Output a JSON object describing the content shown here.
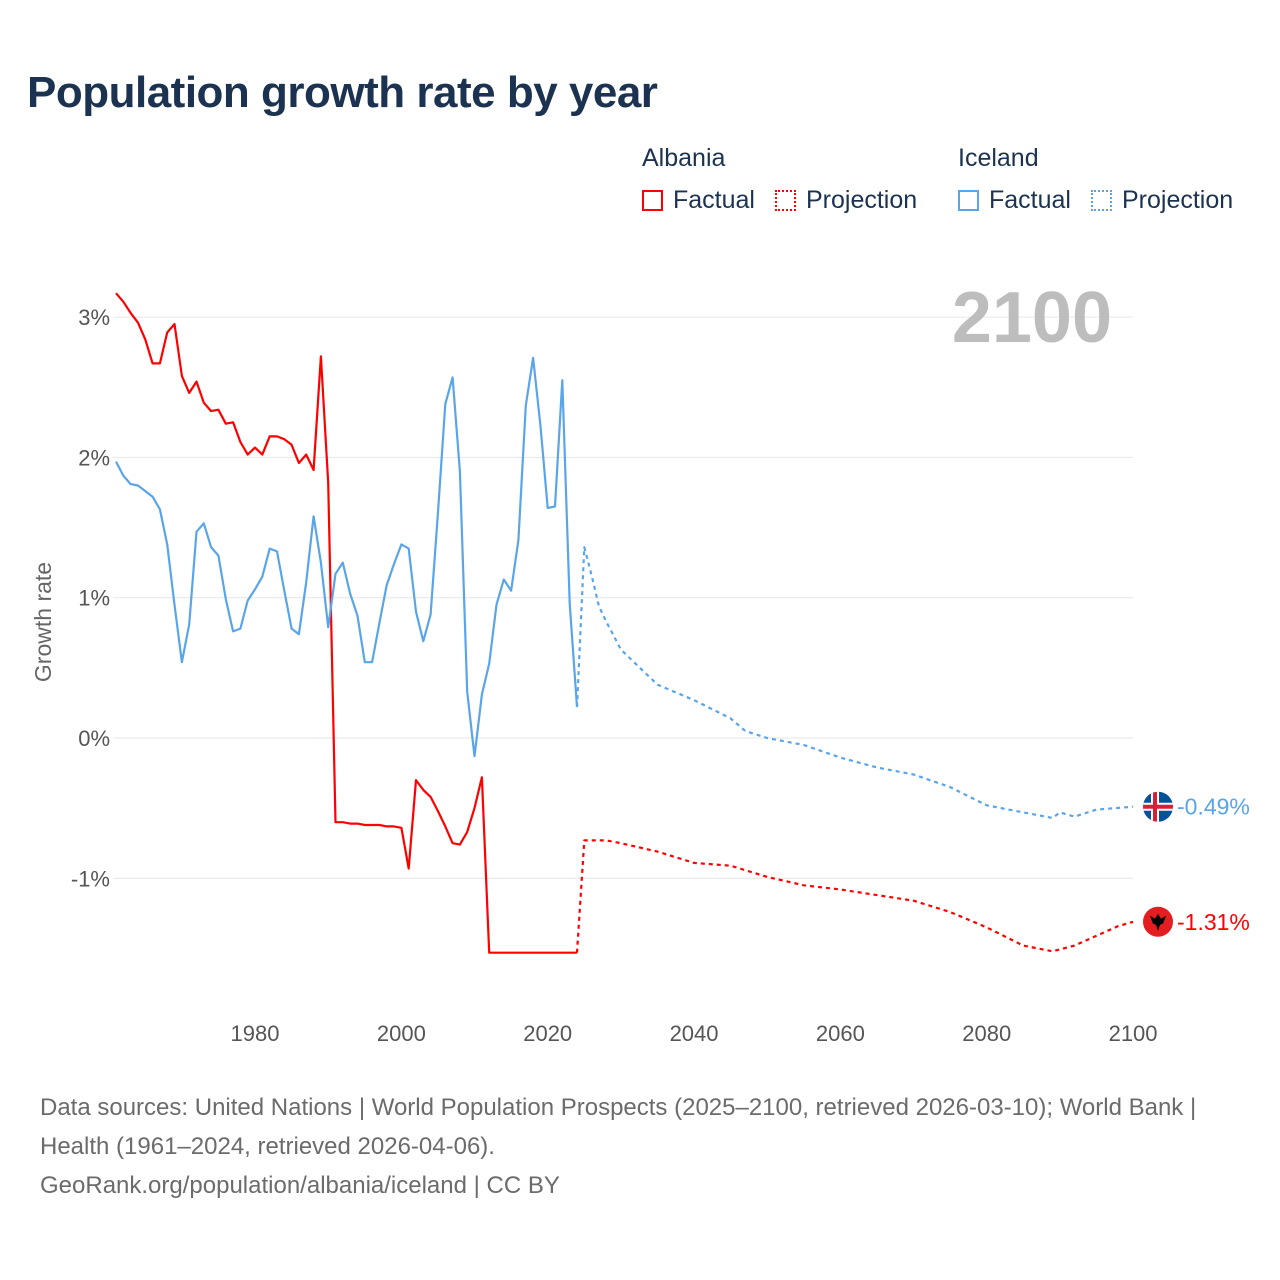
{
  "title": "Population growth rate by year",
  "legend": {
    "groups": [
      {
        "country": "Albania",
        "factual": "Factual",
        "projection": "Projection",
        "color": "#ff0000"
      },
      {
        "country": "Iceland",
        "factual": "Factual",
        "projection": "Projection",
        "color": "#5aa5ea"
      }
    ]
  },
  "year_label": "2100",
  "footer": {
    "sources": "Data sources: United Nations | World Population Prospects (2025–2100, retrieved 2026-03-10); World Bank | Health (1961–2024, retrieved 2026-04-06).",
    "credit": "GeoRank.org/population/albania/iceland | CC BY"
  },
  "chart_data": {
    "type": "line",
    "title": "Population growth rate by year",
    "xlabel": "",
    "ylabel": "Growth rate",
    "xlim": [
      1961,
      2100
    ],
    "ylim": [
      -1.9,
      3.2
    ],
    "grid": true,
    "legend_position": "top-right",
    "x_ticks": [
      1980,
      2000,
      2020,
      2040,
      2060,
      2080,
      2100
    ],
    "x_tick_labels": [
      "1980",
      "2000",
      "2020",
      "2040",
      "2060",
      "2080",
      "2100"
    ],
    "y_ticks": [
      -1,
      0,
      1,
      2,
      3
    ],
    "y_tick_labels": [
      "-1%",
      "0%",
      "1%",
      "2%",
      "3%"
    ],
    "series": [
      {
        "name": "Albania Factual",
        "country": "Albania",
        "kind": "factual",
        "color": "#ff0000",
        "start_year": 1961,
        "values": [
          3.17,
          3.11,
          3.03,
          2.96,
          2.84,
          2.67,
          2.67,
          2.89,
          2.95,
          2.58,
          2.46,
          2.54,
          2.39,
          2.33,
          2.34,
          2.24,
          2.25,
          2.11,
          2.02,
          2.07,
          2.02,
          2.15,
          2.15,
          2.13,
          2.09,
          1.96,
          2.02,
          1.91,
          2.72,
          1.82,
          -0.6,
          -0.6,
          -0.61,
          -0.61,
          -0.62,
          -0.62,
          -0.62,
          -0.63,
          -0.63,
          -0.64,
          -0.93,
          -0.3,
          -0.37,
          -0.42,
          -0.52,
          -0.63,
          -0.75,
          -0.76,
          -0.67,
          -0.5,
          -0.28,
          -1.53,
          -1.53,
          -1.53,
          -1.53,
          -1.53,
          -1.53,
          -1.53,
          -1.53,
          -1.53,
          -1.53,
          -1.53,
          -1.53,
          -1.53
        ]
      },
      {
        "name": "Albania Projection",
        "country": "Albania",
        "kind": "projection",
        "color": "#ff0000",
        "x": [
          2024,
          2025,
          2028,
          2030,
          2035,
          2040,
          2045,
          2050,
          2055,
          2060,
          2065,
          2070,
          2075,
          2080,
          2085,
          2089,
          2092,
          2095,
          2098,
          2100
        ],
        "values": [
          -1.53,
          -0.73,
          -0.73,
          -0.75,
          -0.81,
          -0.89,
          -0.91,
          -0.99,
          -1.05,
          -1.08,
          -1.12,
          -1.16,
          -1.24,
          -1.35,
          -1.48,
          -1.52,
          -1.48,
          -1.41,
          -1.34,
          -1.31
        ]
      },
      {
        "name": "Iceland Factual",
        "country": "Iceland",
        "kind": "factual",
        "color": "#5aa5ea",
        "start_year": 1961,
        "values": [
          1.97,
          1.87,
          1.81,
          1.8,
          1.76,
          1.72,
          1.63,
          1.38,
          0.95,
          0.54,
          0.81,
          1.47,
          1.53,
          1.36,
          1.3,
          0.99,
          0.76,
          0.78,
          0.98,
          1.06,
          1.15,
          1.35,
          1.33,
          1.05,
          0.78,
          0.74,
          1.11,
          1.58,
          1.25,
          0.79,
          1.17,
          1.25,
          1.03,
          0.87,
          0.54,
          0.54,
          0.82,
          1.09,
          1.24,
          1.38,
          1.35,
          0.9,
          0.69,
          0.88,
          1.6,
          2.38,
          2.57,
          1.9,
          0.33,
          -0.13,
          0.31,
          0.53,
          0.95,
          1.13,
          1.05,
          1.41,
          2.37,
          2.71,
          2.23,
          1.64,
          1.65,
          2.55,
          0.96,
          0.22
        ]
      },
      {
        "name": "Iceland Projection",
        "country": "Iceland",
        "kind": "projection",
        "color": "#5aa5ea",
        "x": [
          2024,
          2025,
          2026,
          2027,
          2028,
          2029,
          2030,
          2032,
          2035,
          2040,
          2045,
          2047,
          2050,
          2055,
          2060,
          2065,
          2070,
          2075,
          2080,
          2085,
          2089,
          2090,
          2092,
          2095,
          2100
        ],
        "values": [
          0.22,
          1.36,
          1.16,
          0.94,
          0.83,
          0.73,
          0.63,
          0.53,
          0.38,
          0.27,
          0.14,
          0.05,
          0.0,
          -0.05,
          -0.14,
          -0.21,
          -0.26,
          -0.35,
          -0.48,
          -0.53,
          -0.57,
          -0.53,
          -0.56,
          -0.51,
          -0.49
        ]
      }
    ],
    "end_labels": [
      {
        "country": "Iceland",
        "value": -0.49,
        "label": "-0.49%",
        "color": "#5aa5ea"
      },
      {
        "country": "Albania",
        "value": -1.31,
        "label": "-1.31%",
        "color": "#ff0000"
      }
    ]
  }
}
